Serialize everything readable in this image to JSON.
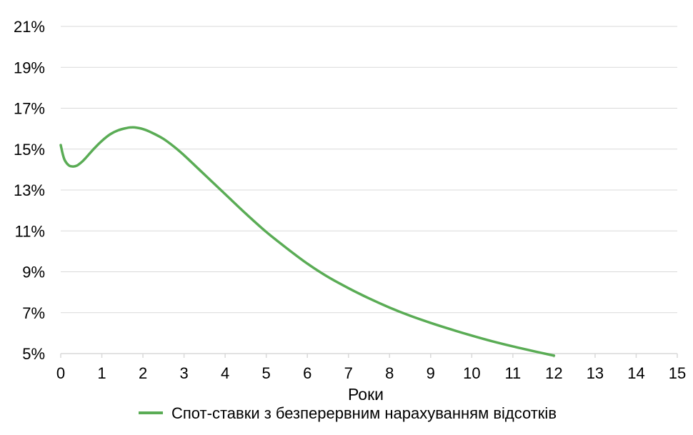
{
  "chart_data": {
    "type": "line",
    "title": "",
    "xlabel": "Роки",
    "ylabel": "",
    "xlim": [
      0,
      15
    ],
    "ylim": [
      5,
      21
    ],
    "x_ticks": [
      "0",
      "1",
      "2",
      "3",
      "4",
      "5",
      "6",
      "7",
      "8",
      "9",
      "10",
      "11",
      "12",
      "13",
      "14",
      "15"
    ],
    "y_ticks": [
      "5%",
      "7%",
      "9%",
      "11%",
      "13%",
      "15%",
      "17%",
      "19%",
      "21%"
    ],
    "grid": "horizontal",
    "legend_position": "bottom",
    "series": [
      {
        "name": "Спот-ставки з безперервним нарахуванням відсотків",
        "color": "#5aac55",
        "x": [
          0,
          0.05,
          0.1,
          0.2,
          0.3,
          0.4,
          0.5,
          0.6,
          0.8,
          1.0,
          1.2,
          1.4,
          1.6,
          1.7,
          1.8,
          2.0,
          2.2,
          2.5,
          2.8,
          3.0,
          3.5,
          4.0,
          4.5,
          5.0,
          5.5,
          6.0,
          6.5,
          7.0,
          7.5,
          8.0,
          8.5,
          9.0,
          9.5,
          10.0,
          10.5,
          11.0,
          11.5,
          12.0
        ],
        "y": [
          15.2,
          14.75,
          14.45,
          14.2,
          14.15,
          14.2,
          14.35,
          14.55,
          15.0,
          15.4,
          15.72,
          15.92,
          16.03,
          16.06,
          16.06,
          15.98,
          15.82,
          15.5,
          15.05,
          14.7,
          13.75,
          12.8,
          11.85,
          10.95,
          10.15,
          9.4,
          8.75,
          8.2,
          7.7,
          7.25,
          6.85,
          6.5,
          6.18,
          5.88,
          5.6,
          5.35,
          5.12,
          4.9
        ]
      }
    ]
  }
}
